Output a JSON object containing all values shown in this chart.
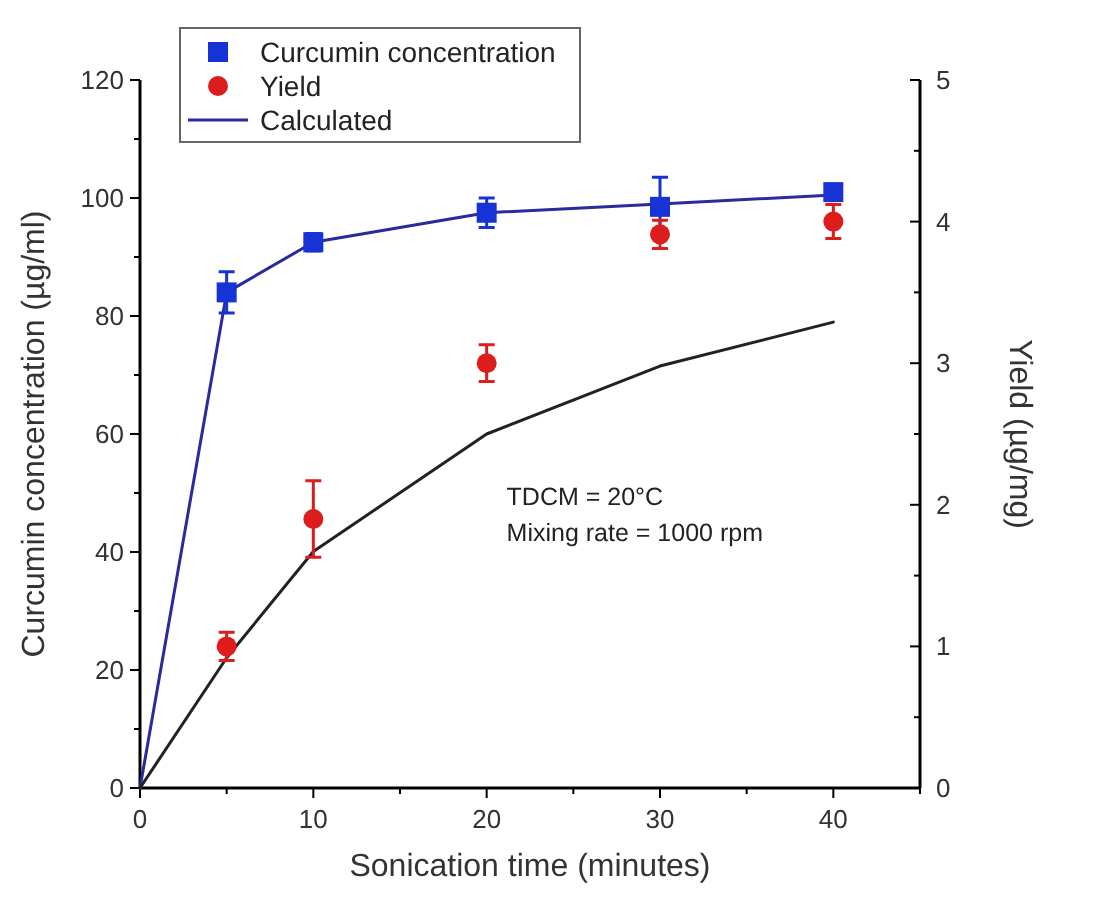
{
  "chart_data": {
    "type": "scatter",
    "xlabel": "Sonication time (minutes)",
    "ylabel": "Curcumin concentration (µg/ml)",
    "y2label": "Yield (µg/mg)",
    "x": [
      5,
      10,
      20,
      30,
      40
    ],
    "xlim": [
      0,
      45
    ],
    "xticks": [
      0,
      {
        "value": 5,
        "label": null
      },
      10,
      {
        "value": 15,
        "label": null
      },
      20,
      {
        "value": 25,
        "label": null
      },
      30,
      {
        "value": 35,
        "label": null
      },
      40,
      {
        "value": 45,
        "label": null
      }
    ],
    "ylim": [
      0,
      120
    ],
    "yticks": [
      0,
      {
        "value": 10,
        "label": null
      },
      20,
      {
        "value": 30,
        "label": null
      },
      40,
      {
        "value": 50,
        "label": null
      },
      60,
      {
        "value": 70,
        "label": null
      },
      80,
      {
        "value": 90,
        "label": null
      },
      100,
      {
        "value": 110,
        "label": null
      },
      120
    ],
    "y2lim": [
      0,
      5
    ],
    "y2ticks": [
      0,
      {
        "value": 0.5,
        "label": null
      },
      1,
      {
        "value": 1.5,
        "label": null
      },
      2,
      {
        "value": 2.5,
        "label": null
      },
      3,
      {
        "value": 3.5,
        "label": null
      },
      4,
      {
        "value": 4.5,
        "label": null
      },
      5
    ],
    "legend": "top left",
    "grid": false,
    "annotations": [
      "TDCM = 20°C",
      "Mixing rate = 1000 rpm"
    ],
    "series": [
      {
        "name": "Curcumin concentration",
        "marker": "square",
        "color": "#1733d6",
        "values": [
          84,
          92.5,
          97.5,
          98.5,
          101
        ],
        "errors": [
          3.5,
          1.5,
          2.5,
          5,
          null
        ]
      },
      {
        "name": "Yield",
        "marker": "circle",
        "color": "#dd1c1c",
        "axis": "y2",
        "values": [
          1.0,
          1.9,
          3.0,
          3.91,
          4.0
        ],
        "errors": [
          0.1,
          0.27,
          0.13,
          0.1,
          0.12
        ]
      },
      {
        "name": "Calculated",
        "type": "line",
        "marker": "none",
        "color": "#2a2a9a",
        "x": [
          0,
          5,
          10,
          20,
          30,
          40
        ],
        "values": [
          0,
          84,
          92.5,
          97.5,
          99,
          100.5
        ]
      },
      {
        "type": "line",
        "marker": "none",
        "color": "#222222",
        "axis": "y2",
        "x": [
          0,
          5,
          10,
          20,
          30,
          40
        ],
        "values": [
          0,
          0.92,
          1.67,
          2.5,
          2.98,
          3.29
        ]
      }
    ]
  }
}
